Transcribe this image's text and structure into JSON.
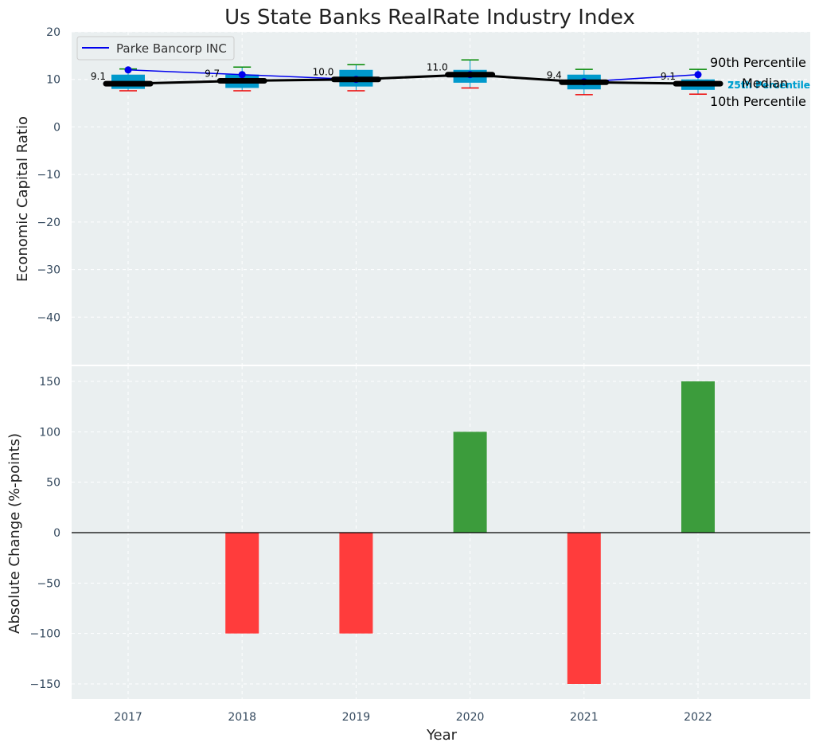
{
  "title": "Us State Banks RealRate Industry Index",
  "chart_data": [
    {
      "type": "box_line",
      "ylabel": "Economic Capital Ratio",
      "ylim": [
        -50,
        20
      ],
      "yticks": [
        20,
        10,
        0,
        -10,
        -20,
        -30,
        -40
      ],
      "categories": [
        "2017",
        "2018",
        "2019",
        "2020",
        "2021",
        "2022"
      ],
      "boxes": [
        {
          "year": "2017",
          "p10": 7.6,
          "q1": 8.0,
          "median": 9.1,
          "q3": 11.0,
          "p90": 12.2
        },
        {
          "year": "2018",
          "p10": 7.6,
          "q1": 8.2,
          "median": 9.7,
          "q3": 11.0,
          "p90": 12.6
        },
        {
          "year": "2019",
          "p10": 7.6,
          "q1": 8.5,
          "median": 10.0,
          "q3": 12.0,
          "p90": 13.1
        },
        {
          "year": "2020",
          "p10": 8.2,
          "q1": 9.3,
          "median": 11.0,
          "q3": 12.0,
          "p90": 14.1
        },
        {
          "year": "2021",
          "p10": 6.8,
          "q1": 7.9,
          "median": 9.4,
          "q3": 11.0,
          "p90": 12.1
        },
        {
          "year": "2022",
          "p10": 6.9,
          "q1": 7.8,
          "median": 9.1,
          "q3": 10.0,
          "p90": 12.1
        }
      ],
      "median_labels": [
        "9.1",
        "9.7",
        "10.0",
        "11.0",
        "9.4",
        "9.1"
      ],
      "series": [
        {
          "name": "Parke Bancorp INC",
          "values": [
            12,
            11,
            10,
            11,
            9.5,
            11
          ],
          "color": "#0000ee"
        }
      ],
      "legend": {
        "entries": [
          "Parke Bancorp INC"
        ],
        "position": "top-left"
      },
      "percentile_labels": {
        "p90": "90th Percentile",
        "median": "Median",
        "p10": "10th Percentile",
        "q1": "25th Percentile",
        "q3": "75th Percentile"
      }
    },
    {
      "type": "bar",
      "ylabel": "Absolute Change (%-points)",
      "xlabel": "Year",
      "ylim": [
        -165,
        165
      ],
      "yticks": [
        150,
        100,
        50,
        0,
        -50,
        -100,
        -150
      ],
      "categories": [
        "2017",
        "2018",
        "2019",
        "2020",
        "2021",
        "2022"
      ],
      "values": [
        0,
        -100,
        -100,
        100,
        -150,
        150
      ],
      "colors": {
        "positive": "#3c9c3c",
        "negative": "#ff3c3c"
      }
    }
  ]
}
